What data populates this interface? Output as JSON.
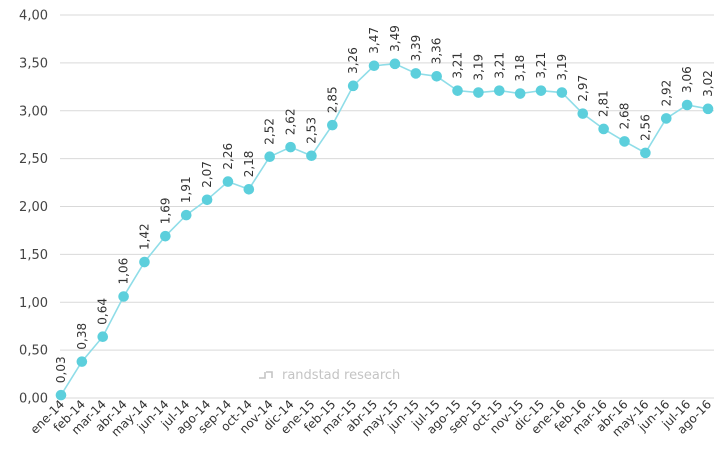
{
  "chart_data": {
    "type": "line",
    "title": "",
    "xlabel": "",
    "ylabel": "",
    "ylim": [
      0,
      4
    ],
    "grid": true,
    "legend": "none",
    "y_ticks": [
      "0,00",
      "0,50",
      "1,00",
      "1,50",
      "2,00",
      "2,50",
      "3,00",
      "3,50",
      "4,00"
    ],
    "y_tick_values": [
      0,
      0.5,
      1,
      1.5,
      2,
      2.5,
      3,
      3.5,
      4
    ],
    "categories": [
      "ene-14",
      "feb-14",
      "mar-14",
      "abr-14",
      "may-14",
      "jun-14",
      "jul-14",
      "ago-14",
      "sep-14",
      "oct-14",
      "nov-14",
      "dic-14",
      "ene-15",
      "feb-15",
      "mar-15",
      "abr-15",
      "may-15",
      "jun-15",
      "jul-15",
      "ago-15",
      "sep-15",
      "oct-15",
      "nov-15",
      "dic-15",
      "ene-16",
      "feb-16",
      "mar-16",
      "abr-16",
      "may-16",
      "jun-16",
      "jul-16",
      "ago-16"
    ],
    "values": [
      0.03,
      0.38,
      0.64,
      1.06,
      1.42,
      1.69,
      1.91,
      2.07,
      2.26,
      2.18,
      2.52,
      2.62,
      2.53,
      2.85,
      3.26,
      3.47,
      3.49,
      3.39,
      3.36,
      3.21,
      3.19,
      3.21,
      3.18,
      3.21,
      3.19,
      2.97,
      2.81,
      2.68,
      2.56,
      2.92,
      3.06,
      3.02
    ],
    "value_labels": [
      "0,03",
      "0,38",
      "0,64",
      "1,06",
      "1,42",
      "1,69",
      "1,91",
      "2,07",
      "2,26",
      "2,18",
      "2,52",
      "2,62",
      "2,53",
      "2,85",
      "3,26",
      "3,47",
      "3,49",
      "3,39",
      "3,36",
      "3,21",
      "3,19",
      "3,21",
      "3,18",
      "3,21",
      "3,19",
      "2,97",
      "2,81",
      "2,68",
      "2,56",
      "2,92",
      "3,06",
      "3,02"
    ],
    "line_color": "#8fdde8",
    "marker_color": "#5ccfdc",
    "grid_color": "#d9d9d9"
  },
  "watermark": "randstad research"
}
